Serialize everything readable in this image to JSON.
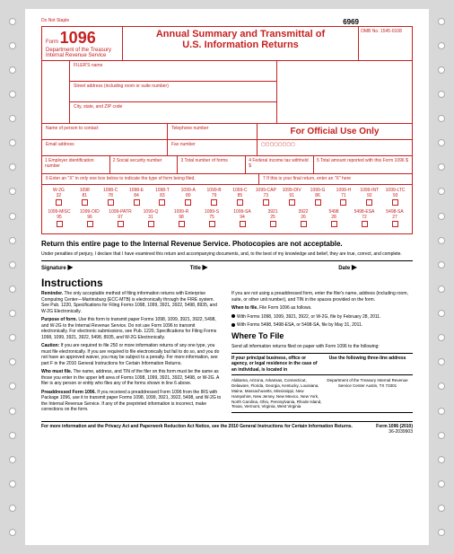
{
  "top": {
    "dns": "Do Not Staple",
    "code": "6969"
  },
  "header": {
    "form_label": "Form",
    "form_no": "1096",
    "dept": "Department of the Treasury",
    "irs": "Internal Revenue Service",
    "title1": "Annual Summary and Transmittal of",
    "title2": "U.S. Information Returns",
    "omb": "OMB No. 1545-0108"
  },
  "filer": {
    "name": "FILER'S name",
    "street": "Street address (including room or suite number)",
    "city": "City, state, and ZIP code"
  },
  "contact": {
    "name": "Name of person to contact",
    "phone": "Telephone number",
    "email": "Email address",
    "fax": "Fax number",
    "official": "For Official Use Only"
  },
  "nums": {
    "c1": "1 Employer identification number",
    "c2": "2 Social security number",
    "c3": "3 Total number of forms",
    "c4": "4 Federal income tax withheld $",
    "c5": "5 Total amount reported with this Form 1096 $"
  },
  "type": {
    "left": "6 Enter an \"X\" in only one box below to indicate the type of form being filed.",
    "right": "7 If this is your final return, enter an \"X\" here"
  },
  "forms1": [
    {
      "l": "W-2G",
      "n": "32"
    },
    {
      "l": "1098",
      "n": "81"
    },
    {
      "l": "1098-C",
      "n": "78"
    },
    {
      "l": "1098-E",
      "n": "84"
    },
    {
      "l": "1098-T",
      "n": "83"
    },
    {
      "l": "1099-A",
      "n": "80"
    },
    {
      "l": "1099-B",
      "n": "79"
    },
    {
      "l": "1099-C",
      "n": "85"
    },
    {
      "l": "1099-CAP",
      "n": "73"
    },
    {
      "l": "1099-DIV",
      "n": "91"
    },
    {
      "l": "1099-G",
      "n": "86"
    },
    {
      "l": "1099-H",
      "n": "71"
    },
    {
      "l": "1099-INT",
      "n": "92"
    },
    {
      "l": "1099-LTC",
      "n": "93"
    }
  ],
  "forms2": [
    {
      "l": "1099-MISC",
      "n": "95"
    },
    {
      "l": "1099-OID",
      "n": "96"
    },
    {
      "l": "1099-PATR",
      "n": "97"
    },
    {
      "l": "1099-Q",
      "n": "31"
    },
    {
      "l": "1099-R",
      "n": "98"
    },
    {
      "l": "1099-S",
      "n": "75"
    },
    {
      "l": "1099-SA",
      "n": "94"
    },
    {
      "l": "3921",
      "n": "25"
    },
    {
      "l": "3922",
      "n": "26"
    },
    {
      "l": "5498",
      "n": "28"
    },
    {
      "l": "5498-ESA",
      "n": "72"
    },
    {
      "l": "5498-SA",
      "n": "27"
    }
  ],
  "return_line": "Return this entire page to the Internal Revenue Service. Photocopies are not acceptable.",
  "perjury": "Under penalties of perjury, I declare that I have examined this return and accompanying documents, and, to the best of my knowledge and belief, they are true, correct, and complete.",
  "sig": {
    "s": "Signature",
    "t": "Title",
    "d": "Date",
    "arrow": "▶"
  },
  "inst": {
    "title": "Instructions",
    "p1b": "Reminder.",
    "p1": " The only acceptable method of filing information returns with Enterprise Computing Center—Martinsburg (ECC-MTB) is electronically through the FIRE system. See Pub. 1220, Specifications for Filing Forms 1098, 1099, 3921, 3922, 5498, 8935, and W-2G Electronically.",
    "p2b": "Purpose of form.",
    "p2": " Use this form to transmit paper Forms 1098, 1099, 3921, 3922, 5498, and W-2G to the Internal Revenue Service. Do not use Form 1096 to transmit electronically. For electronic submissions, see Pub. 1220, Specifications for Filing Forms 1098, 1099, 3921, 3922, 5498, 8935, and W-2G Electronically.",
    "p3b": "Caution:",
    "p3": " If you are required to file 250 or more information returns of any one type, you must file electronically. If you are required to file electronically but fail to do so, and you do not have an approved waiver, you may be subject to a penalty. For more information, see part F in the 2010 General Instructions for Certain Information Returns.",
    "p4b": "Who must file.",
    "p4": " The name, address, and TIN of the filer on this form must be the same as those you enter in the upper left area of Forms 1098, 1099, 3921, 3922, 5498, or W-2G. A filer is any person or entity who files any of the forms shown in line 6 above.",
    "p5b": "Preaddressed Form 1096.",
    "p5": " If you received a preaddressed Form 1096 from the IRS with Package 1096, use it to transmit paper Forms 1098, 1099, 3921, 3922, 5498, and W-2G to the Internal Revenue Service. If any of the preprinted information is incorrect, make corrections on the form.",
    "r1": "If you are not using a preaddressed form, enter the filer's name, address (including room, suite, or other unit number), and TIN in the spaces provided on the form.",
    "r2b": "When to file.",
    "r2": " File Form 1096 as follows.",
    "r3": "With Forms 1098, 1099, 3921, 3922, or W-2G, file by February 28, 2011.",
    "r4": "With Forms 5498, 5498-ESA, or 5498-SA, file by May 31, 2011.",
    "where": "Where To File",
    "where_sub": "Send all information returns filed on paper with Form 1096 to the following:",
    "wt1": "If your principal business, office or agency, or legal residence in the case of an individual, is located in",
    "wt2": "Use the following three-line address",
    "states": "Alabama, Arizona, Arkansas, Connecticut, Delaware, Florida, Georgia, Kentucky, Louisiana, Maine, Massachusetts, Mississippi, New Hampshire, New Jersey, New Mexico, New York, North Carolina, Ohio, Pennsylvania, Rhode Island, Texas, Vermont, Virginia, West Virginia",
    "addr": "Department of the Treasury Internal Revenue Service Center Austin, TX 73301"
  },
  "footer": {
    "left": "For more information and the Privacy Act and Paperwork Reduction Act Notice, see the 2010 General Instructions for Certain Information Returns.",
    "mid": "Form 1096 (2010)",
    "cat": "36-2039903"
  }
}
